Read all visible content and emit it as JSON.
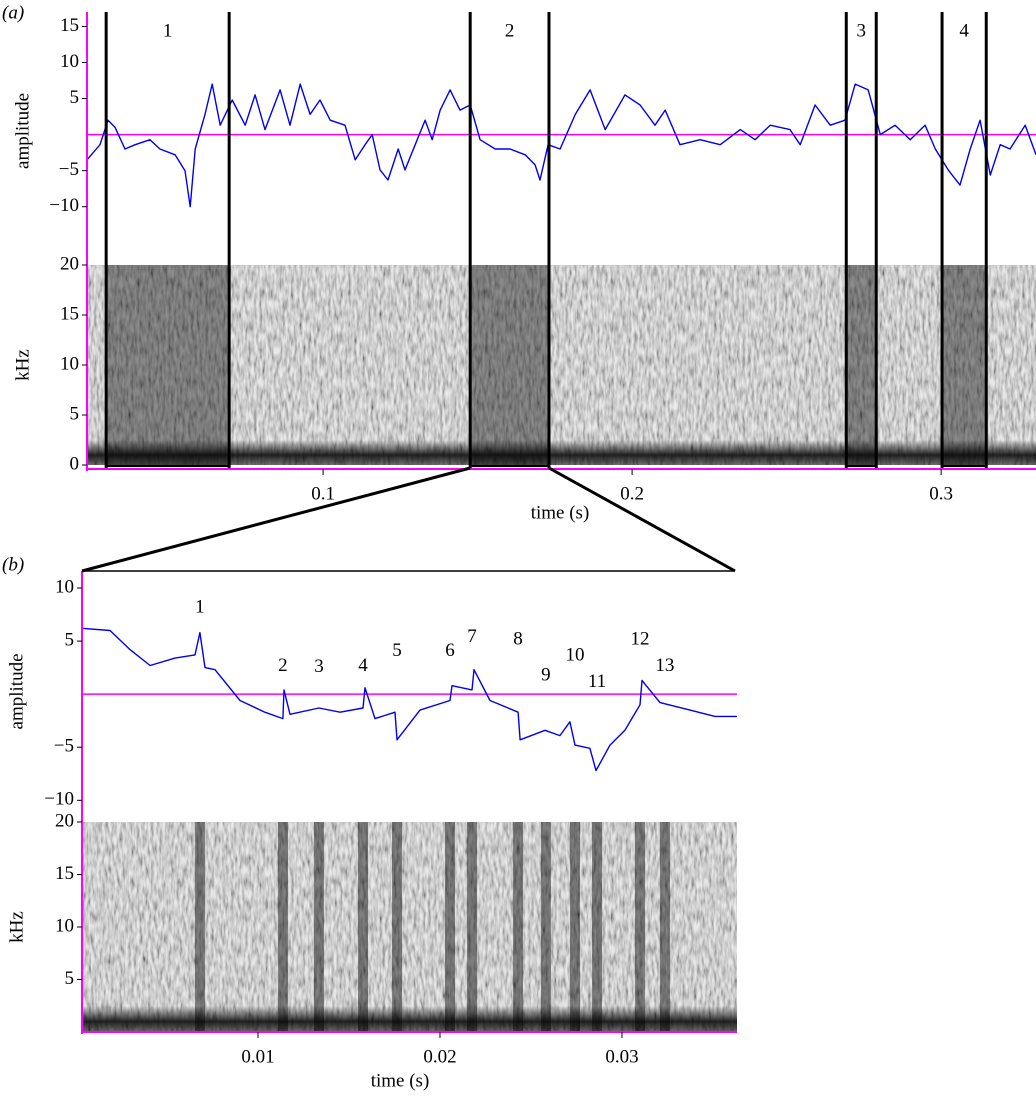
{
  "chart_data": [
    {
      "type": "waveform-spectrogram",
      "panel_label": "(a)",
      "xlabel": "time (s)",
      "ylabel": "amplitude",
      "spec_ylabel": "kHz",
      "xlim": [
        0.0236,
        0.3307
      ],
      "xticks": [
        0.1,
        0.2,
        0.3
      ],
      "ylim": [
        -16,
        17
      ],
      "yticks": [
        {
          "value": -10,
          "label": "−10"
        },
        {
          "value": -5,
          "label": "−5"
        },
        5,
        10,
        15
      ],
      "spec_ylim": [
        0,
        20
      ],
      "spec_yticks": [
        0,
        5,
        10,
        15,
        20
      ],
      "zero_line_color": "#ff00ff",
      "series": [
        {
          "color": "#0000ee",
          "x": [
            0.0236,
            0.0278,
            0.0304,
            0.0327,
            0.0359,
            0.0392,
            0.044,
            0.0472,
            0.0521,
            0.0553,
            0.057,
            0.0586,
            0.0618,
            0.0641,
            0.0667,
            0.0706,
            0.0748,
            0.078,
            0.0812,
            0.0861,
            0.0893,
            0.0926,
            0.0958,
            0.099,
            0.1023,
            0.1071,
            0.1104,
            0.1136,
            0.1159,
            0.1184,
            0.121,
            0.1243,
            0.1265,
            0.1298,
            0.133,
            0.1353,
            0.1379,
            0.1411,
            0.1443,
            0.1476,
            0.1508,
            0.1557,
            0.1605,
            0.1654,
            0.1686,
            0.1702,
            0.1728,
            0.1767,
            0.1816,
            0.1864,
            0.1913,
            0.1977,
            0.2026,
            0.2074,
            0.2107,
            0.2155,
            0.222,
            0.2285,
            0.235,
            0.2398,
            0.2447,
            0.2511,
            0.2544,
            0.2592,
            0.2641,
            0.2689,
            0.2722,
            0.2764,
            0.2803,
            0.2851,
            0.29,
            0.2948,
            0.2981,
            0.3023,
            0.3061,
            0.3094,
            0.3126,
            0.3159,
            0.3191,
            0.3223,
            0.3272,
            0.3307
          ],
          "values": [
            -3.5,
            -1.4,
            2,
            1,
            -2,
            -1.4,
            -0.7,
            -2,
            -2.8,
            -5,
            -10,
            -2,
            2.8,
            7,
            1.3,
            4.8,
            1.3,
            5.5,
            0.7,
            6.2,
            1.3,
            7,
            2.8,
            4.8,
            2,
            1.3,
            -3.5,
            -1.4,
            0,
            -4.9,
            -6.3,
            -2,
            -4.9,
            -1.4,
            2,
            -0.7,
            3.4,
            6.2,
            3.4,
            4.1,
            -0.7,
            -2,
            -2,
            -2.8,
            -4.2,
            -6.3,
            -1.4,
            -2,
            2.8,
            6.2,
            0.7,
            5.5,
            4.1,
            1.3,
            3.4,
            -1.4,
            -0.7,
            -1.4,
            0.7,
            -0.7,
            1.3,
            0.7,
            -1.4,
            4.1,
            1.3,
            2,
            7,
            6.2,
            0,
            1.3,
            -0.7,
            1.3,
            -2,
            -4.9,
            -7,
            -2,
            2,
            -5.6,
            -1.4,
            -2,
            1.3,
            -2.8
          ]
        }
      ],
      "segments": [
        {
          "label": "1",
          "start": 0.0298,
          "end": 0.0696
        },
        {
          "label": "2",
          "start": 0.1476,
          "end": 0.1731
        },
        {
          "label": "3",
          "start": 0.2693,
          "end": 0.279
        },
        {
          "label": "4",
          "start": 0.3003,
          "end": 0.3146
        }
      ]
    },
    {
      "type": "waveform-spectrogram",
      "panel_label": "(b)",
      "xlabel": "time (s)",
      "ylabel": "amplitude",
      "spec_ylabel": "kHz",
      "xlim": [
        0.00033,
        0.03632
      ],
      "xticks": [
        0.01,
        0.02,
        0.03
      ],
      "ylim": [
        -11.1,
        11.6
      ],
      "yticks": [
        {
          "value": -10,
          "label": "−10"
        },
        {
          "value": -5,
          "label": "−5"
        },
        5,
        10
      ],
      "spec_ylim": [
        0,
        20
      ],
      "spec_yticks": [
        5,
        10,
        15,
        20
      ],
      "zero_line_color": "#ff00ff",
      "series": [
        {
          "color": "#0000ee",
          "x": [
            0.00033,
            0.00187,
            0.00297,
            0.00407,
            0.00544,
            0.00654,
            0.00681,
            0.00709,
            0.00764,
            0.00901,
            0.01038,
            0.01137,
            0.01143,
            0.01176,
            0.01335,
            0.01451,
            0.01577,
            0.01588,
            0.01643,
            0.01753,
            0.01764,
            0.0189,
            0.02055,
            0.02066,
            0.02176,
            0.02187,
            0.02275,
            0.02429,
            0.0244,
            0.02577,
            0.02659,
            0.02714,
            0.02742,
            0.02824,
            0.02857,
            0.02934,
            0.03016,
            0.03099,
            0.0311,
            0.03209,
            0.03374,
            0.03511,
            0.03632
          ],
          "values": [
            6.2,
            6.0,
            4.2,
            2.7,
            3.4,
            3.7,
            5.8,
            2.5,
            2.3,
            -0.6,
            -1.7,
            -2.3,
            0.4,
            -1.9,
            -1.3,
            -1.7,
            -1.3,
            0.6,
            -2.3,
            -1.7,
            -4.3,
            -1.5,
            -0.6,
            0.8,
            0.4,
            2.3,
            -0.6,
            -1.7,
            -4.3,
            -3.4,
            -3.9,
            -2.6,
            -4.8,
            -5.1,
            -7.2,
            -4.8,
            -3.4,
            -1.0,
            1.3,
            -0.8,
            -1.5,
            -2.1,
            -2.1
          ]
        }
      ],
      "annotations": [
        {
          "text": "1",
          "x": 0.00681,
          "y": 8.1
        },
        {
          "text": "2",
          "x": 0.01137,
          "y": 2.6
        },
        {
          "text": "3",
          "x": 0.01335,
          "y": 2.5
        },
        {
          "text": "4",
          "x": 0.01577,
          "y": 2.6
        },
        {
          "text": "5",
          "x": 0.01764,
          "y": 4.0
        },
        {
          "text": "6",
          "x": 0.02055,
          "y": 4.0
        },
        {
          "text": "7",
          "x": 0.02176,
          "y": 5.3
        },
        {
          "text": "8",
          "x": 0.02429,
          "y": 5.1
        },
        {
          "text": "9",
          "x": 0.02582,
          "y": 1.7
        },
        {
          "text": "10",
          "x": 0.02742,
          "y": 3.6
        },
        {
          "text": "11",
          "x": 0.02863,
          "y": 1.1
        },
        {
          "text": "12",
          "x": 0.03099,
          "y": 5.1
        },
        {
          "text": "13",
          "x": 0.03236,
          "y": 2.6
        }
      ]
    }
  ]
}
